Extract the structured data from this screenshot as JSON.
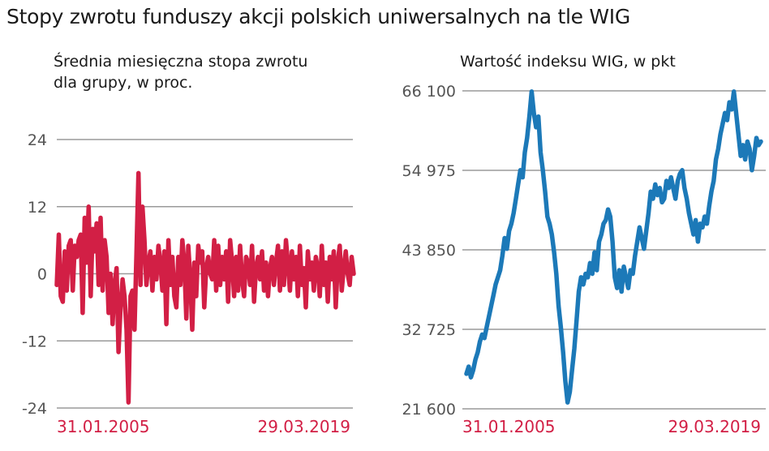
{
  "title": "Stopy zwrotu funduszy akcji polskich uniwersalnych na tle WIG",
  "colors": {
    "left_series": "#d21f45",
    "right_series": "#1c79b8",
    "date_label": "#d21f45",
    "grid": "#9a9a9a"
  },
  "chart_data": [
    {
      "type": "line",
      "title_lines": [
        "Średnia miesięczna stopa zwrotu",
        "dla grupy, w proc."
      ],
      "yticks": [
        24,
        12,
        0,
        -12,
        -24
      ],
      "ytick_labels": [
        "24",
        "12",
        "0",
        "-12",
        "-24"
      ],
      "ylim": [
        -24,
        24
      ],
      "x_start_label": "31.01.2005",
      "x_end_label": "29.03.2019",
      "grid": true,
      "series": [
        {
          "values": [
            -2,
            7,
            -4,
            -5,
            4,
            -3,
            5,
            6,
            -3,
            5,
            3,
            6,
            7,
            -7,
            10,
            2,
            12,
            -4,
            8,
            4,
            9,
            -2,
            10,
            -3,
            6,
            3,
            -7,
            0,
            -9,
            -2,
            1,
            -14,
            -6,
            -1,
            -4,
            -10,
            -23,
            -4,
            -3,
            -10,
            4,
            18,
            -2,
            12,
            6,
            -2,
            2,
            4,
            -3,
            3,
            -1,
            5,
            2,
            -3,
            4,
            -9,
            6,
            -2,
            3,
            -4,
            -6,
            3,
            -2,
            6,
            2,
            -8,
            5,
            -1,
            -10,
            2,
            -4,
            5,
            2,
            4,
            -6,
            1,
            3,
            0,
            -1,
            6,
            -3,
            5,
            -2,
            3,
            -1,
            4,
            -5,
            6,
            2,
            -4,
            3,
            -3,
            5,
            -1,
            -4,
            3,
            2,
            -2,
            5,
            -5,
            1,
            3,
            -1,
            4,
            -3,
            2,
            -4,
            1,
            3,
            -2,
            2,
            5,
            -3,
            4,
            -2,
            6,
            2,
            -3,
            4,
            -1,
            3,
            -4,
            5,
            -2,
            1,
            -6,
            4,
            -1,
            2,
            -3,
            3,
            1,
            -4,
            5,
            -2,
            2,
            -5,
            3,
            -1,
            4,
            -6,
            2,
            5,
            -3,
            1,
            4,
            0,
            -2,
            3,
            0
          ]
        }
      ]
    },
    {
      "type": "line",
      "title_lines": [
        "Wartość indeksu WIG, w pkt"
      ],
      "yticks": [
        66100,
        54975,
        43850,
        32725,
        21600
      ],
      "ytick_labels": [
        "66 100",
        "54 975",
        "43 850",
        "32 725",
        "21 600"
      ],
      "ylim": [
        21600,
        66100
      ],
      "x_start_label": "31.01.2005",
      "x_end_label": "29.03.2019",
      "grid": true,
      "series": [
        {
          "values": [
            26500,
            27500,
            26000,
            27000,
            28500,
            29500,
            31000,
            32000,
            31500,
            33000,
            34500,
            36000,
            37500,
            39000,
            40000,
            41000,
            43000,
            45500,
            44000,
            46500,
            47500,
            49000,
            51000,
            53000,
            55000,
            54000,
            57500,
            59500,
            62500,
            66000,
            63000,
            61000,
            62500,
            57500,
            55000,
            52000,
            48500,
            47500,
            46000,
            43500,
            40500,
            36000,
            33000,
            29500,
            25500,
            22500,
            24000,
            27000,
            30000,
            34000,
            38000,
            40000,
            39000,
            40500,
            40000,
            42000,
            40500,
            43500,
            41000,
            45000,
            46000,
            47500,
            48000,
            49500,
            48500,
            45000,
            40000,
            38500,
            41000,
            38000,
            41500,
            40000,
            38500,
            41000,
            40500,
            43000,
            45000,
            47000,
            45500,
            44000,
            46500,
            49000,
            52000,
            51000,
            53000,
            51500,
            52500,
            50500,
            51000,
            53500,
            52500,
            54000,
            52500,
            51000,
            53500,
            54500,
            55000,
            52500,
            51000,
            49000,
            47500,
            46000,
            48000,
            45000,
            47500,
            47000,
            48500,
            47500,
            50000,
            52000,
            53500,
            56500,
            58000,
            60000,
            61500,
            63000,
            62000,
            64500,
            63500,
            66000,
            63000,
            60000,
            57000,
            58500,
            56500,
            59000,
            58000,
            55000,
            57000,
            59500,
            58500,
            59000
          ]
        }
      ]
    }
  ]
}
